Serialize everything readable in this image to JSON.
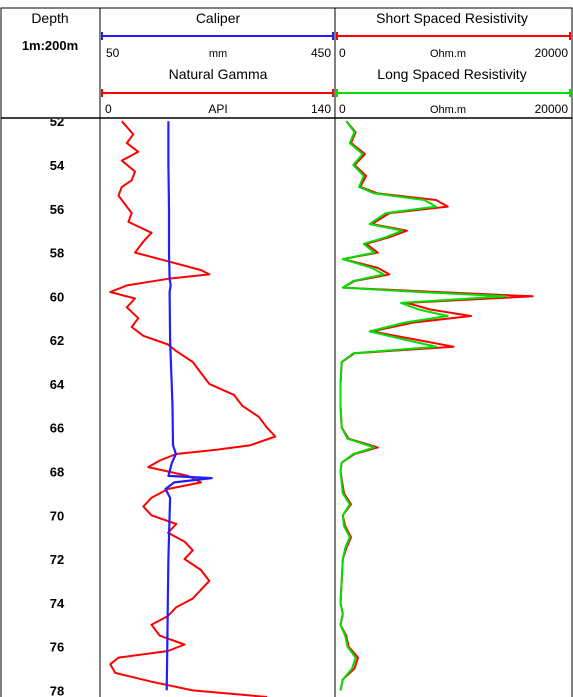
{
  "header": {
    "depth_title": "Depth",
    "scale_label": "1m:200m",
    "tracks": [
      {
        "title": "Caliper",
        "unit": "mm",
        "min_label": "50",
        "max_label": "450",
        "color": "#1f1fff"
      },
      {
        "title": "Natural Gamma",
        "unit": "API",
        "min_label": "0",
        "max_label": "140",
        "color": "#ff0000"
      },
      {
        "title": "Short Spaced Resistivity",
        "unit": "Ohm.m",
        "min_label": "0",
        "max_label": "20000",
        "color": "#ff0000"
      },
      {
        "title": "Long Spaced Resistivity",
        "unit": "Ohm.m",
        "min_label": "0",
        "max_label": "20000",
        "color": "#00dd00"
      }
    ]
  },
  "chart_data": {
    "type": "line",
    "title": "",
    "ylabel": "Depth",
    "depth_range": [
      51.9,
      78.3
    ],
    "depth_ticks": [
      54,
      56,
      58,
      60,
      62,
      64,
      66,
      68,
      70,
      72,
      74,
      76
    ],
    "series": [
      {
        "name": "Caliper",
        "unit": "mm",
        "range": [
          50,
          450
        ],
        "color": "#1f1fff",
        "points": [
          [
            52,
            165
          ],
          [
            54,
            165
          ],
          [
            56,
            166
          ],
          [
            58,
            166
          ],
          [
            59.2,
            167
          ],
          [
            59.5,
            169
          ],
          [
            59.8,
            167
          ],
          [
            62,
            168
          ],
          [
            63.5,
            170
          ],
          [
            65,
            172
          ],
          [
            66.8,
            173
          ],
          [
            67.2,
            178
          ],
          [
            67.6,
            171
          ],
          [
            68.2,
            165
          ],
          [
            68.3,
            240
          ],
          [
            68.5,
            175
          ],
          [
            68.8,
            160
          ],
          [
            69.2,
            168
          ],
          [
            70,
            167
          ],
          [
            72,
            165
          ],
          [
            74,
            164
          ],
          [
            76,
            163
          ],
          [
            78,
            162
          ]
        ]
      },
      {
        "name": "Natural Gamma",
        "unit": "API",
        "range": [
          0,
          140
        ],
        "color": "#ff0000",
        "points": [
          [
            52,
            12
          ],
          [
            52.6,
            19
          ],
          [
            53,
            15
          ],
          [
            53.4,
            22
          ],
          [
            53.8,
            12
          ],
          [
            54.3,
            20
          ],
          [
            54.7,
            18
          ],
          [
            55,
            12
          ],
          [
            55.4,
            10
          ],
          [
            55.8,
            14
          ],
          [
            56.2,
            18
          ],
          [
            56.6,
            16
          ],
          [
            57.1,
            30
          ],
          [
            57.5,
            25
          ],
          [
            58,
            20
          ],
          [
            58.4,
            40
          ],
          [
            58.8,
            60
          ],
          [
            59,
            65
          ],
          [
            59.2,
            40
          ],
          [
            59.5,
            15
          ],
          [
            59.8,
            5
          ],
          [
            60.1,
            20
          ],
          [
            60.5,
            15
          ],
          [
            61,
            22
          ],
          [
            61.4,
            18
          ],
          [
            61.8,
            25
          ],
          [
            62.2,
            40
          ],
          [
            62.5,
            45
          ],
          [
            63,
            55
          ],
          [
            63.5,
            60
          ],
          [
            64,
            65
          ],
          [
            64.5,
            80
          ],
          [
            65,
            85
          ],
          [
            65.5,
            95
          ],
          [
            66,
            100
          ],
          [
            66.4,
            105
          ],
          [
            66.8,
            90
          ],
          [
            67,
            70
          ],
          [
            67.2,
            45
          ],
          [
            67.5,
            35
          ],
          [
            67.8,
            28
          ],
          [
            68.2,
            52
          ],
          [
            68.5,
            60
          ],
          [
            68.8,
            40
          ],
          [
            69.2,
            30
          ],
          [
            69.6,
            25
          ],
          [
            70,
            30
          ],
          [
            70.4,
            45
          ],
          [
            70.8,
            40
          ],
          [
            71.2,
            50
          ],
          [
            71.6,
            55
          ],
          [
            72,
            50
          ],
          [
            72.5,
            60
          ],
          [
            73,
            65
          ],
          [
            73.4,
            60
          ],
          [
            73.8,
            55
          ],
          [
            74.2,
            45
          ],
          [
            74.6,
            40
          ],
          [
            75,
            30
          ],
          [
            75.5,
            35
          ],
          [
            75.9,
            50
          ],
          [
            76.2,
            40
          ],
          [
            76.5,
            10
          ],
          [
            76.8,
            5
          ],
          [
            77.2,
            8
          ],
          [
            77.6,
            30
          ],
          [
            78,
            55
          ],
          [
            78.3,
            100
          ]
        ]
      },
      {
        "name": "Short Spaced Resistivity",
        "unit": "Ohm.m",
        "range": [
          0,
          20000
        ],
        "color": "#ff0000",
        "points": [
          [
            52,
            800
          ],
          [
            52.5,
            1600
          ],
          [
            53,
            1200
          ],
          [
            53.5,
            2400
          ],
          [
            54,
            1500
          ],
          [
            54.5,
            2500
          ],
          [
            55,
            2000
          ],
          [
            55.3,
            3500
          ],
          [
            55.6,
            8500
          ],
          [
            55.9,
            9500
          ],
          [
            56.2,
            4500
          ],
          [
            56.7,
            3000
          ],
          [
            57,
            6000
          ],
          [
            57.3,
            4500
          ],
          [
            57.6,
            2500
          ],
          [
            58,
            3500
          ],
          [
            58.3,
            500
          ],
          [
            58.7,
            3500
          ],
          [
            59,
            4500
          ],
          [
            59.3,
            1500
          ],
          [
            59.6,
            500
          ],
          [
            59.8,
            8500
          ],
          [
            60,
            16800
          ],
          [
            60.3,
            6000
          ],
          [
            60.6,
            8000
          ],
          [
            60.9,
            11500
          ],
          [
            61.2,
            6500
          ],
          [
            61.6,
            3000
          ],
          [
            62,
            7000
          ],
          [
            62.3,
            10000
          ],
          [
            62.6,
            1500
          ],
          [
            63,
            400
          ],
          [
            64,
            300
          ],
          [
            65,
            300
          ],
          [
            66,
            400
          ],
          [
            66.5,
            1000
          ],
          [
            66.9,
            3500
          ],
          [
            67.2,
            1500
          ],
          [
            67.6,
            400
          ],
          [
            68,
            300
          ],
          [
            69,
            600
          ],
          [
            69.5,
            1200
          ],
          [
            70,
            500
          ],
          [
            70.5,
            700
          ],
          [
            71,
            1200
          ],
          [
            71.5,
            800
          ],
          [
            72,
            500
          ],
          [
            73,
            400
          ],
          [
            74,
            300
          ],
          [
            74.5,
            500
          ],
          [
            75,
            300
          ],
          [
            75.5,
            800
          ],
          [
            76,
            1000
          ],
          [
            76.5,
            1800
          ],
          [
            77,
            1500
          ],
          [
            77.5,
            500
          ],
          [
            78,
            300
          ]
        ]
      },
      {
        "name": "Long Spaced Resistivity",
        "unit": "Ohm.m",
        "range": [
          0,
          20000
        ],
        "color": "#00dd00",
        "points": [
          [
            52,
            800
          ],
          [
            52.5,
            1500
          ],
          [
            53,
            1100
          ],
          [
            53.5,
            2200
          ],
          [
            54,
            1400
          ],
          [
            54.5,
            2300
          ],
          [
            55,
            1900
          ],
          [
            55.3,
            3200
          ],
          [
            55.6,
            7500
          ],
          [
            55.9,
            8500
          ],
          [
            56.2,
            4200
          ],
          [
            56.7,
            2800
          ],
          [
            57,
            5600
          ],
          [
            57.3,
            4200
          ],
          [
            57.6,
            2300
          ],
          [
            58,
            3200
          ],
          [
            58.3,
            500
          ],
          [
            58.7,
            3000
          ],
          [
            59,
            4000
          ],
          [
            59.3,
            1400
          ],
          [
            59.6,
            500
          ],
          [
            59.8,
            7000
          ],
          [
            60,
            14500
          ],
          [
            60.3,
            5500
          ],
          [
            60.6,
            7000
          ],
          [
            60.9,
            9500
          ],
          [
            61.2,
            5800
          ],
          [
            61.6,
            2800
          ],
          [
            62,
            6000
          ],
          [
            62.3,
            8500
          ],
          [
            62.6,
            1400
          ],
          [
            63,
            400
          ],
          [
            64,
            300
          ],
          [
            65,
            300
          ],
          [
            66,
            400
          ],
          [
            66.5,
            900
          ],
          [
            66.9,
            3200
          ],
          [
            67.2,
            1400
          ],
          [
            67.6,
            400
          ],
          [
            68,
            300
          ],
          [
            69,
            500
          ],
          [
            69.5,
            1100
          ],
          [
            70,
            500
          ],
          [
            70.5,
            600
          ],
          [
            71,
            1100
          ],
          [
            71.5,
            700
          ],
          [
            72,
            500
          ],
          [
            73,
            400
          ],
          [
            74,
            300
          ],
          [
            74.5,
            500
          ],
          [
            75,
            300
          ],
          [
            75.5,
            700
          ],
          [
            76,
            900
          ],
          [
            76.5,
            1600
          ],
          [
            77,
            1300
          ],
          [
            77.5,
            500
          ],
          [
            78,
            300
          ]
        ]
      }
    ]
  }
}
